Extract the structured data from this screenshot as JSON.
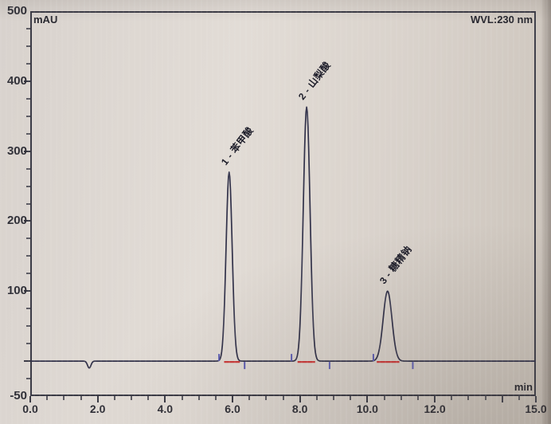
{
  "chart": {
    "y_axis_unit": "mAU",
    "x_axis_unit": "min",
    "wavelength_label": "WVL:230 nm"
  },
  "colors": {
    "background": "#dcd6d0",
    "trace": "#32324a",
    "axis": "#3b3b46",
    "integration_baseline": "#cc3b3b",
    "peak_marker": "#5a5ab2"
  },
  "chart_data": {
    "type": "line",
    "title": "WVL:230 nm",
    "xlabel": "min",
    "ylabel": "mAU",
    "xlim": [
      0.0,
      15.0
    ],
    "ylim": [
      -50,
      500
    ],
    "grid": false,
    "legend": false,
    "x_major_tick_step": 2.0,
    "x_minor_tick_step": 0.5,
    "y_major_tick_step": 100,
    "y_minor_tick_step": 25,
    "x_tick_labels": [
      {
        "value": 0.0,
        "label": "0.0"
      },
      {
        "value": 2.0,
        "label": "2.0"
      },
      {
        "value": 4.0,
        "label": "4.0"
      },
      {
        "value": 6.0,
        "label": "6.0"
      },
      {
        "value": 8.0,
        "label": "8.0"
      },
      {
        "value": 10.0,
        "label": "10.0"
      },
      {
        "value": 12.0,
        "label": "12.0"
      },
      {
        "value": 15.0,
        "label": "15.0"
      }
    ],
    "y_tick_labels": [
      {
        "value": 500,
        "label": "500"
      },
      {
        "value": 400,
        "label": "400"
      },
      {
        "value": 300,
        "label": "300"
      },
      {
        "value": 200,
        "label": "200"
      },
      {
        "value": 100,
        "label": "100"
      },
      {
        "value": -50,
        "label": "-50"
      }
    ],
    "baseline_mAU": 0,
    "injection_dip": {
      "time_min": 1.75,
      "depth_mAU": -10,
      "sigma_min": 0.05
    },
    "peaks": [
      {
        "number": 1,
        "name": "苯甲酸",
        "label": "1 - 苯甲酸",
        "retention_min": 5.9,
        "height_mAU": 270,
        "sigma_min": 0.09,
        "integration_from_min": 5.75,
        "integration_to_min": 6.22,
        "start_mark_min": 5.6,
        "end_mark_min": 6.36
      },
      {
        "number": 2,
        "name": "山梨酸",
        "label": "2 - 山梨酸",
        "retention_min": 8.2,
        "height_mAU": 363,
        "sigma_min": 0.1,
        "integration_from_min": 7.93,
        "integration_to_min": 8.45,
        "start_mark_min": 7.75,
        "end_mark_min": 8.88
      },
      {
        "number": 3,
        "name": "糖精钠",
        "label": "3 - 糖精钠",
        "retention_min": 10.6,
        "height_mAU": 100,
        "sigma_min": 0.13,
        "integration_from_min": 10.28,
        "integration_to_min": 10.95,
        "start_mark_min": 10.18,
        "end_mark_min": 11.35
      }
    ]
  }
}
